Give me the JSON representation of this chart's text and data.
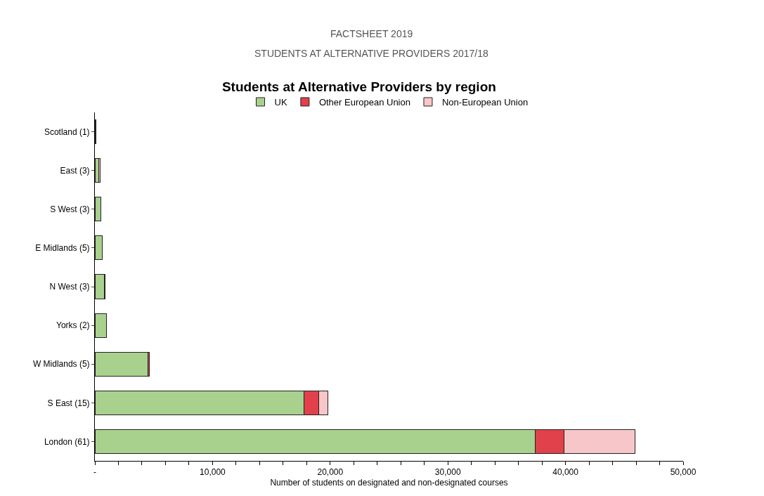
{
  "chart_data": {
    "type": "bar",
    "orientation": "horizontal",
    "stacked": true,
    "title": "Students at Alternative Providers by region",
    "annotations": [
      "FACTSHEET 2019",
      "STUDENTS AT ALTERNATIVE PROVIDERS 2017/18"
    ],
    "xlabel": "Number of students on designated and non-designated courses",
    "categories": [
      "Scotland (1)",
      "East (3)",
      "S West (3)",
      "E Midlands (5)",
      "N West (3)",
      "Yorks (2)",
      "W Midlands (5)",
      "S East (15)",
      "London (61)"
    ],
    "series": [
      {
        "name": "UK",
        "color": "#a9d18e",
        "values": [
          100,
          350,
          500,
          600,
          800,
          1000,
          4500,
          17800,
          37400
        ]
      },
      {
        "name": "Other European Union",
        "color": "#e0414a",
        "values": [
          null,
          null,
          null,
          null,
          50,
          null,
          100,
          1200,
          2500
        ]
      },
      {
        "name": "Non-European Union",
        "color": "#f7c6c9",
        "values": [
          null,
          100,
          null,
          null,
          null,
          null,
          null,
          800,
          6000
        ]
      }
    ],
    "xlim": [
      0,
      50000
    ],
    "xticks": [
      {
        "value": 0,
        "label": "-"
      },
      {
        "value": 2000,
        "label": null
      },
      {
        "value": 4000,
        "label": null
      },
      {
        "value": 6000,
        "label": null
      },
      {
        "value": 8000,
        "label": null
      },
      {
        "value": 10000,
        "label": "10,000"
      },
      {
        "value": 12000,
        "label": null
      },
      {
        "value": 14000,
        "label": null
      },
      {
        "value": 16000,
        "label": null
      },
      {
        "value": 18000,
        "label": null
      },
      {
        "value": 20000,
        "label": "20,000"
      },
      {
        "value": 22000,
        "label": null
      },
      {
        "value": 24000,
        "label": null
      },
      {
        "value": 26000,
        "label": null
      },
      {
        "value": 28000,
        "label": null
      },
      {
        "value": 30000,
        "label": "30,000"
      },
      {
        "value": 32000,
        "label": null
      },
      {
        "value": 34000,
        "label": null
      },
      {
        "value": 36000,
        "label": null
      },
      {
        "value": 38000,
        "label": null
      },
      {
        "value": 40000,
        "label": "40,000"
      },
      {
        "value": 42000,
        "label": null
      },
      {
        "value": 44000,
        "label": null
      },
      {
        "value": 46000,
        "label": null
      },
      {
        "value": 48000,
        "label": null
      },
      {
        "value": 50000,
        "label": "50,000"
      }
    ],
    "grid": false,
    "legend": "top"
  }
}
